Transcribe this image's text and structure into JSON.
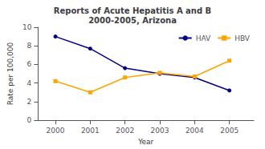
{
  "chart_data": {
    "type": "line",
    "title": "Reports of Acute Hepatitis A and B\n2000-2005, Arizona",
    "xlabel": "Year",
    "ylabel": "Rate per 100,000",
    "x": [
      2000,
      2001,
      2002,
      2003,
      2004,
      2005
    ],
    "series": [
      {
        "name": "HAV",
        "color": "#00008B",
        "marker": "circle",
        "values": [
          9.0,
          7.7,
          5.6,
          5.0,
          4.6,
          3.2
        ]
      },
      {
        "name": "HBV",
        "color": "#FFA500",
        "marker": "square",
        "values": [
          4.2,
          3.0,
          4.6,
          5.1,
          4.7,
          6.4
        ]
      }
    ],
    "xlim": [
      1999.5,
      2005.7
    ],
    "xticks": [
      2000,
      2001,
      2002,
      2003,
      2004,
      2005
    ],
    "ylim": [
      0,
      10
    ],
    "yticks": [
      0,
      2,
      4,
      6,
      8,
      10
    ],
    "grid": false,
    "legend": "upper right"
  }
}
